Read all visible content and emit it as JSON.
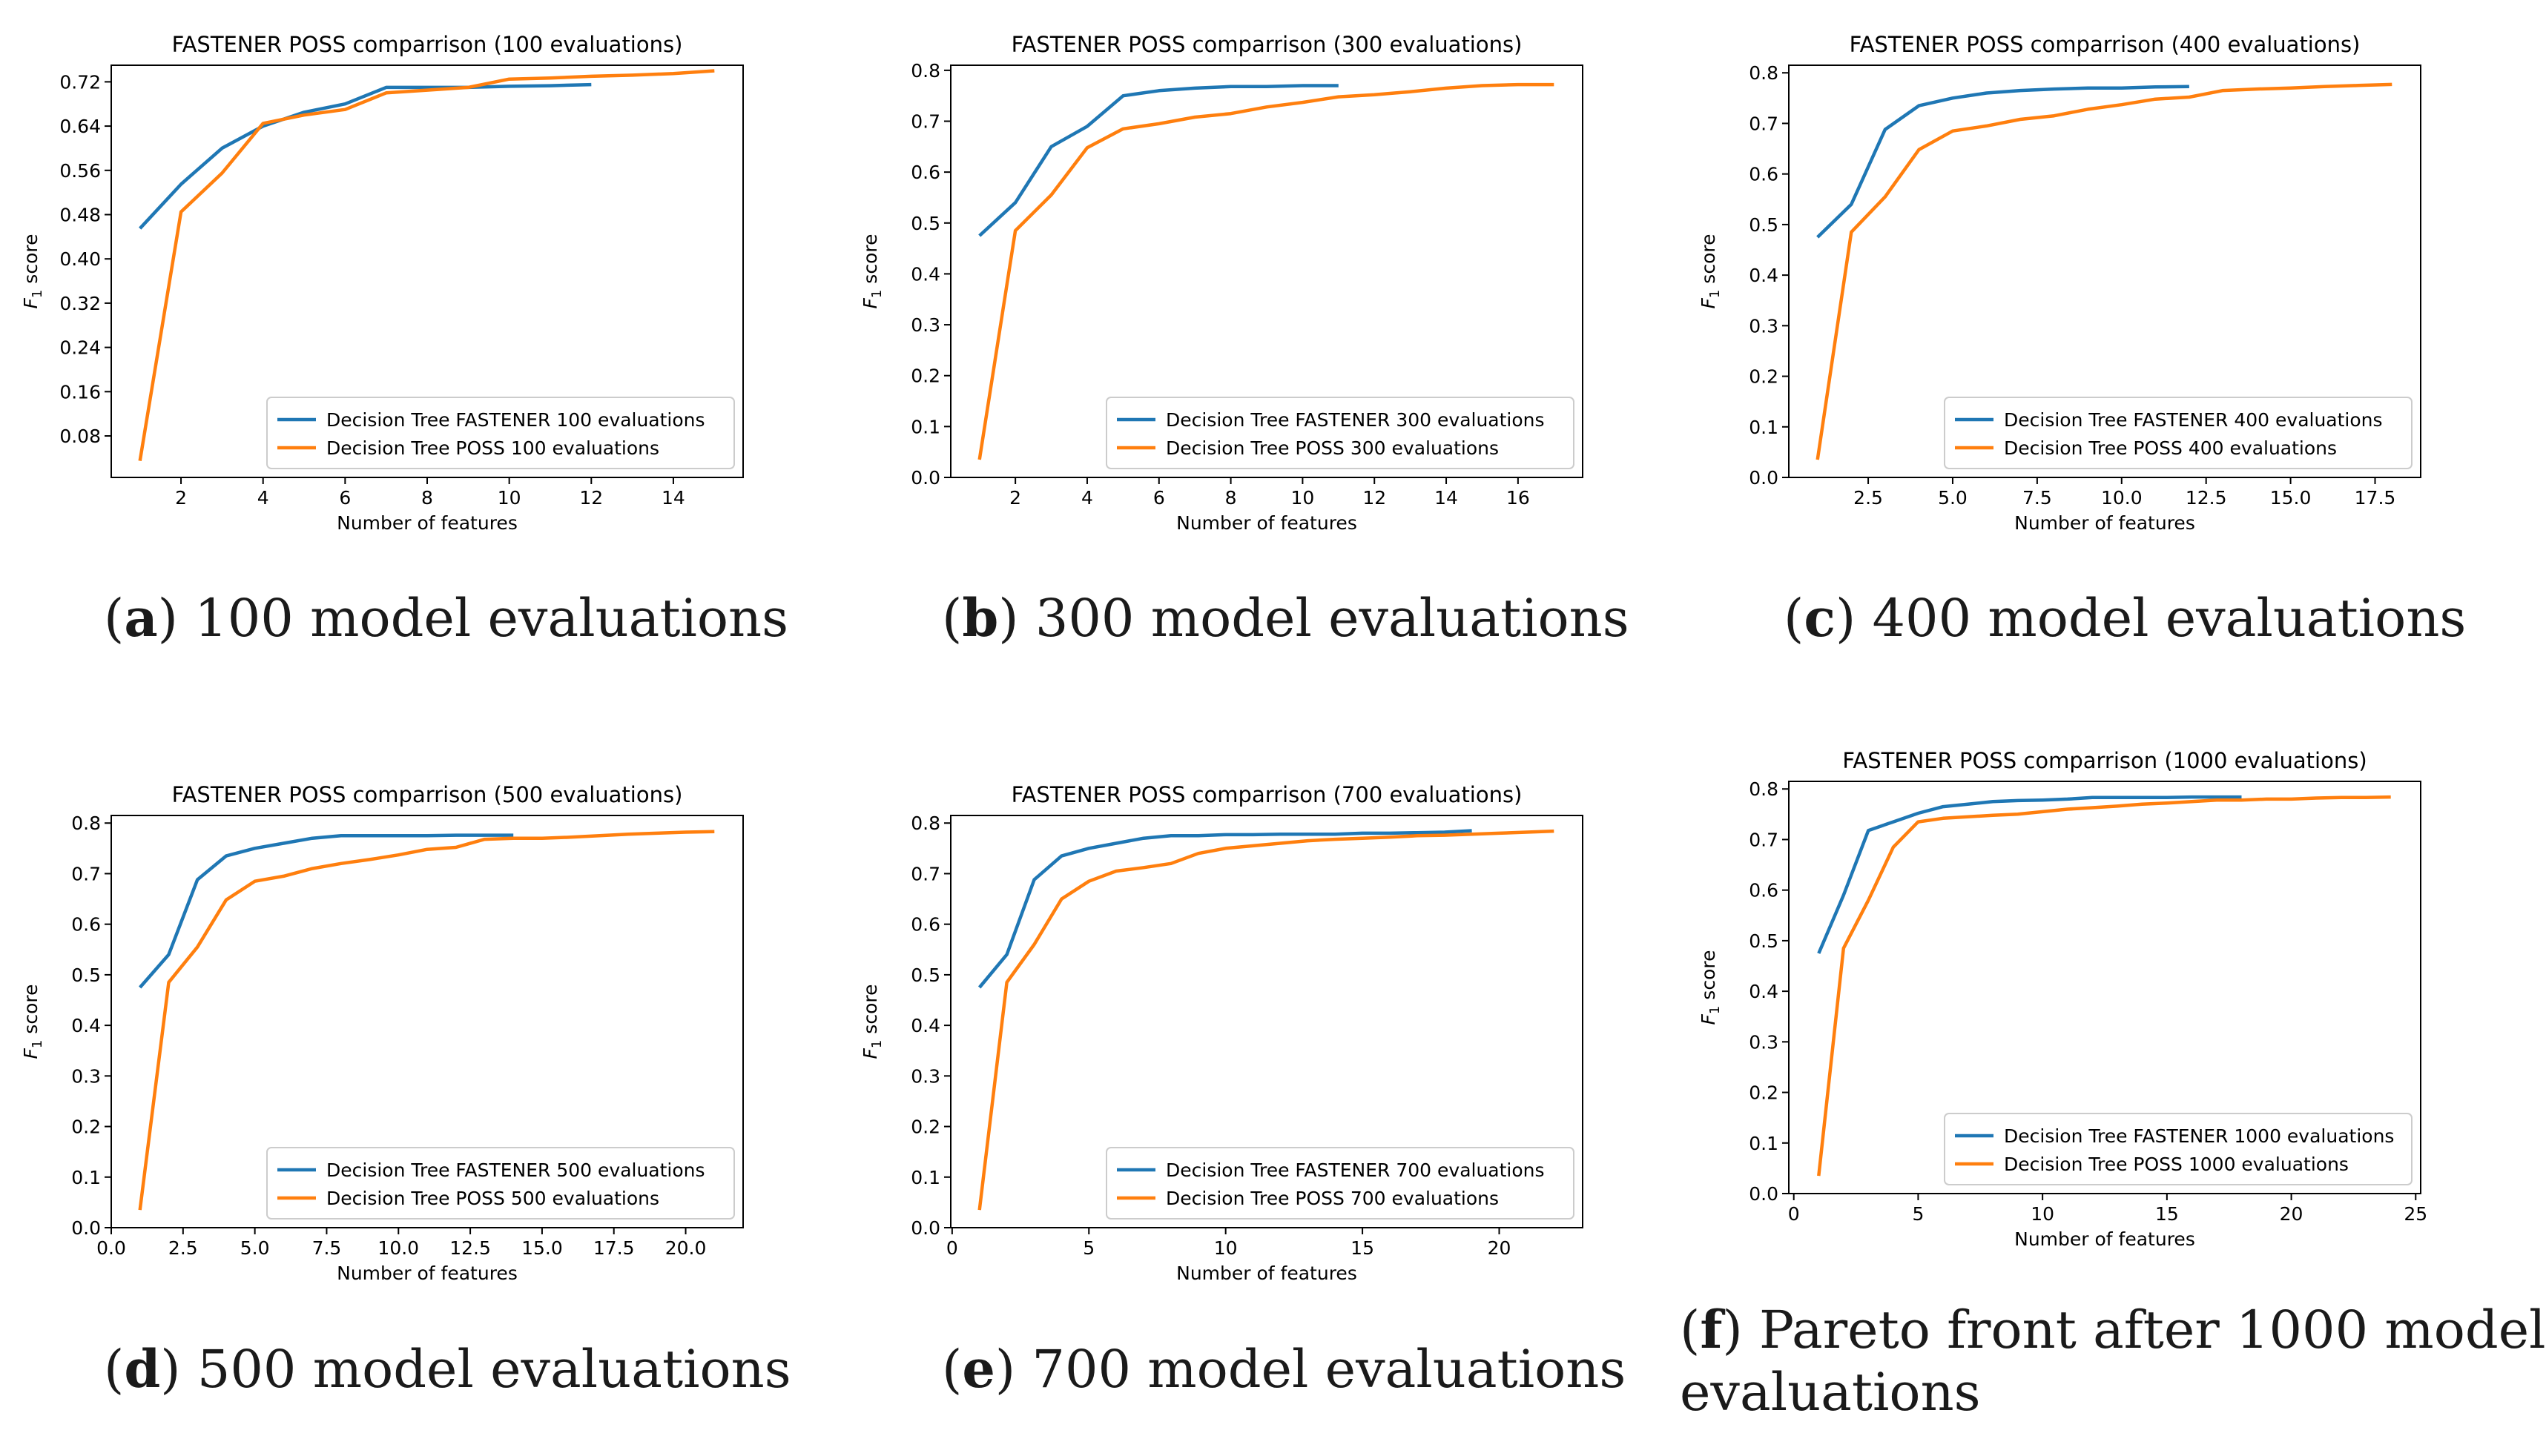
{
  "figure": {
    "f1_label_sub": "1",
    "f1_label_rest": " score"
  },
  "chart_data": [
    {
      "type": "line",
      "panel": "a",
      "title": "FASTENER POSS comparrison (100 evaluations)",
      "xlabel": "Number of features",
      "ylabel": "F1 score",
      "xlim": [
        0.3,
        15.7
      ],
      "ylim": [
        0.005,
        0.75
      ],
      "xticks": [
        2,
        4,
        6,
        8,
        10,
        12,
        14
      ],
      "xtick_labels": [
        "2",
        "4",
        "6",
        "8",
        "10",
        "12",
        "14"
      ],
      "yticks": [
        0.08,
        0.16,
        0.24,
        0.32,
        0.4,
        0.48,
        0.56,
        0.64,
        0.72
      ],
      "ytick_labels": [
        "0.08",
        "0.16",
        "0.24",
        "0.32",
        "0.40",
        "0.48",
        "0.56",
        "0.64",
        "0.72"
      ],
      "legend_position": "lower-right",
      "series": [
        {
          "name": "Decision Tree FASTENER 100 evaluations",
          "color": "#1f77b4",
          "x": [
            1,
            2,
            3,
            4,
            5,
            6,
            7,
            8,
            9,
            10,
            11,
            12
          ],
          "y": [
            0.455,
            0.535,
            0.6,
            0.64,
            0.665,
            0.68,
            0.71,
            0.71,
            0.71,
            0.712,
            0.713,
            0.715
          ]
        },
        {
          "name": "Decision Tree POSS 100 evaluations",
          "color": "#ff7f0e",
          "x": [
            1,
            2,
            3,
            4,
            5,
            6,
            7,
            8,
            9,
            10,
            11,
            12,
            13,
            14,
            15
          ],
          "y": [
            0.035,
            0.485,
            0.555,
            0.645,
            0.66,
            0.67,
            0.7,
            0.705,
            0.71,
            0.725,
            0.727,
            0.73,
            0.732,
            0.735,
            0.74
          ]
        }
      ]
    },
    {
      "type": "line",
      "panel": "b",
      "title": "FASTENER POSS comparrison (300 evaluations)",
      "xlabel": "Number of features",
      "ylabel": "F1 score",
      "xlim": [
        0.2,
        17.8
      ],
      "ylim": [
        0,
        0.81
      ],
      "xticks": [
        2,
        4,
        6,
        8,
        10,
        12,
        14,
        16
      ],
      "xtick_labels": [
        "2",
        "4",
        "6",
        "8",
        "10",
        "12",
        "14",
        "16"
      ],
      "yticks": [
        0.0,
        0.1,
        0.2,
        0.3,
        0.4,
        0.5,
        0.6,
        0.7,
        0.8
      ],
      "ytick_labels": [
        "0.0",
        "0.1",
        "0.2",
        "0.3",
        "0.4",
        "0.5",
        "0.6",
        "0.7",
        "0.8"
      ],
      "legend_position": "lower-right",
      "series": [
        {
          "name": "Decision Tree FASTENER 300 evaluations",
          "color": "#1f77b4",
          "x": [
            1,
            2,
            3,
            4,
            5,
            6,
            7,
            8,
            9,
            10,
            11
          ],
          "y": [
            0.475,
            0.54,
            0.65,
            0.69,
            0.75,
            0.76,
            0.765,
            0.768,
            0.768,
            0.77,
            0.77
          ]
        },
        {
          "name": "Decision Tree POSS 300 evaluations",
          "color": "#ff7f0e",
          "x": [
            1,
            2,
            3,
            4,
            5,
            6,
            7,
            8,
            9,
            10,
            11,
            12,
            13,
            14,
            15,
            16,
            17
          ],
          "y": [
            0.035,
            0.485,
            0.555,
            0.648,
            0.685,
            0.695,
            0.708,
            0.715,
            0.728,
            0.737,
            0.748,
            0.752,
            0.758,
            0.765,
            0.77,
            0.772,
            0.772
          ]
        }
      ]
    },
    {
      "type": "line",
      "panel": "c",
      "title": "FASTENER POSS comparrison (400 evaluations)",
      "xlabel": "Number of features",
      "ylabel": "F1 score",
      "xlim": [
        0.15,
        18.85
      ],
      "ylim": [
        0,
        0.815
      ],
      "xticks": [
        2.5,
        5.0,
        7.5,
        10.0,
        12.5,
        15.0,
        17.5
      ],
      "xtick_labels": [
        "2.5",
        "5.0",
        "7.5",
        "10.0",
        "12.5",
        "15.0",
        "17.5"
      ],
      "yticks": [
        0.0,
        0.1,
        0.2,
        0.3,
        0.4,
        0.5,
        0.6,
        0.7,
        0.8
      ],
      "ytick_labels": [
        "0.0",
        "0.1",
        "0.2",
        "0.3",
        "0.4",
        "0.5",
        "0.6",
        "0.7",
        "0.8"
      ],
      "legend_position": "lower-right",
      "series": [
        {
          "name": "Decision Tree FASTENER 400 evaluations",
          "color": "#1f77b4",
          "x": [
            1,
            2,
            3,
            4,
            5,
            6,
            7,
            8,
            9,
            10,
            11,
            12
          ],
          "y": [
            0.475,
            0.54,
            0.688,
            0.735,
            0.75,
            0.76,
            0.765,
            0.768,
            0.77,
            0.77,
            0.772,
            0.773
          ]
        },
        {
          "name": "Decision Tree POSS 400 evaluations",
          "color": "#ff7f0e",
          "x": [
            1,
            2,
            3,
            4,
            5,
            6,
            7,
            8,
            9,
            10,
            11,
            12,
            13,
            14,
            15,
            16,
            17,
            18
          ],
          "y": [
            0.035,
            0.485,
            0.555,
            0.648,
            0.685,
            0.695,
            0.708,
            0.715,
            0.728,
            0.737,
            0.748,
            0.752,
            0.765,
            0.768,
            0.77,
            0.773,
            0.775,
            0.777
          ]
        }
      ]
    },
    {
      "type": "line",
      "panel": "d",
      "title": "FASTENER POSS comparrison (500 evaluations)",
      "xlabel": "Number of features",
      "ylabel": "F1 score",
      "xlim": [
        0,
        22
      ],
      "ylim": [
        0,
        0.815
      ],
      "xticks": [
        0.0,
        2.5,
        5.0,
        7.5,
        10.0,
        12.5,
        15.0,
        17.5,
        20.0
      ],
      "xtick_labels": [
        "0.0",
        "2.5",
        "5.0",
        "7.5",
        "10.0",
        "12.5",
        "15.0",
        "17.5",
        "20.0"
      ],
      "yticks": [
        0.0,
        0.1,
        0.2,
        0.3,
        0.4,
        0.5,
        0.6,
        0.7,
        0.8
      ],
      "ytick_labels": [
        "0.0",
        "0.1",
        "0.2",
        "0.3",
        "0.4",
        "0.5",
        "0.6",
        "0.7",
        "0.8"
      ],
      "legend_position": "lower-right",
      "series": [
        {
          "name": "Decision Tree FASTENER 500 evaluations",
          "color": "#1f77b4",
          "x": [
            1,
            2,
            3,
            4,
            5,
            6,
            7,
            8,
            9,
            10,
            11,
            12,
            13,
            14
          ],
          "y": [
            0.475,
            0.54,
            0.688,
            0.735,
            0.75,
            0.76,
            0.77,
            0.775,
            0.775,
            0.775,
            0.775,
            0.776,
            0.776,
            0.776
          ]
        },
        {
          "name": "Decision Tree POSS 500 evaluations",
          "color": "#ff7f0e",
          "x": [
            1,
            2,
            3,
            4,
            5,
            6,
            7,
            8,
            9,
            10,
            11,
            12,
            13,
            14,
            15,
            16,
            17,
            18,
            19,
            20,
            21
          ],
          "y": [
            0.035,
            0.485,
            0.555,
            0.648,
            0.685,
            0.695,
            0.71,
            0.72,
            0.728,
            0.737,
            0.748,
            0.752,
            0.768,
            0.77,
            0.77,
            0.772,
            0.775,
            0.778,
            0.78,
            0.782,
            0.783
          ]
        }
      ]
    },
    {
      "type": "line",
      "panel": "e",
      "title": "FASTENER POSS comparrison (700 evaluations)",
      "xlabel": "Number of features",
      "ylabel": "F1 score",
      "xlim": [
        -0.05,
        23.05
      ],
      "ylim": [
        0,
        0.815
      ],
      "xticks": [
        0,
        5,
        10,
        15,
        20
      ],
      "xtick_labels": [
        "0",
        "5",
        "10",
        "15",
        "20"
      ],
      "yticks": [
        0.0,
        0.1,
        0.2,
        0.3,
        0.4,
        0.5,
        0.6,
        0.7,
        0.8
      ],
      "ytick_labels": [
        "0.0",
        "0.1",
        "0.2",
        "0.3",
        "0.4",
        "0.5",
        "0.6",
        "0.7",
        "0.8"
      ],
      "legend_position": "lower-right",
      "series": [
        {
          "name": "Decision Tree FASTENER 700 evaluations",
          "color": "#1f77b4",
          "x": [
            1,
            2,
            3,
            4,
            5,
            6,
            7,
            8,
            9,
            10,
            11,
            12,
            13,
            14,
            15,
            16,
            17,
            18,
            19
          ],
          "y": [
            0.475,
            0.54,
            0.688,
            0.735,
            0.75,
            0.76,
            0.77,
            0.775,
            0.775,
            0.777,
            0.777,
            0.778,
            0.778,
            0.778,
            0.78,
            0.78,
            0.781,
            0.782,
            0.785
          ]
        },
        {
          "name": "Decision Tree POSS 700 evaluations",
          "color": "#ff7f0e",
          "x": [
            1,
            2,
            3,
            4,
            5,
            6,
            7,
            8,
            9,
            10,
            11,
            12,
            13,
            14,
            15,
            16,
            17,
            18,
            19,
            20,
            21,
            22
          ],
          "y": [
            0.035,
            0.485,
            0.56,
            0.65,
            0.685,
            0.705,
            0.712,
            0.72,
            0.74,
            0.75,
            0.755,
            0.76,
            0.765,
            0.768,
            0.77,
            0.772,
            0.775,
            0.776,
            0.778,
            0.78,
            0.782,
            0.784
          ]
        }
      ]
    },
    {
      "type": "line",
      "panel": "f",
      "title": "FASTENER POSS comparrison (1000 evaluations)",
      "xlabel": "Number of features",
      "ylabel": "F1 score",
      "xlim": [
        -0.2,
        25.2
      ],
      "ylim": [
        0,
        0.815
      ],
      "xticks": [
        0,
        5,
        10,
        15,
        20,
        25
      ],
      "xtick_labels": [
        "0",
        "5",
        "10",
        "15",
        "20",
        "25"
      ],
      "yticks": [
        0.0,
        0.1,
        0.2,
        0.3,
        0.4,
        0.5,
        0.6,
        0.7,
        0.8
      ],
      "ytick_labels": [
        "0.0",
        "0.1",
        "0.2",
        "0.3",
        "0.4",
        "0.5",
        "0.6",
        "0.7",
        "0.8"
      ],
      "legend_position": "lower-right",
      "series": [
        {
          "name": "Decision Tree FASTENER 1000 evaluations",
          "color": "#1f77b4",
          "x": [
            1,
            2,
            3,
            4,
            5,
            6,
            7,
            8,
            9,
            10,
            11,
            12,
            13,
            14,
            15,
            16,
            17,
            18
          ],
          "y": [
            0.475,
            0.59,
            0.718,
            0.735,
            0.752,
            0.765,
            0.77,
            0.775,
            0.777,
            0.778,
            0.78,
            0.783,
            0.783,
            0.783,
            0.783,
            0.784,
            0.784,
            0.784
          ]
        },
        {
          "name": "Decision Tree POSS 1000 evaluations",
          "color": "#ff7f0e",
          "x": [
            1,
            2,
            3,
            4,
            5,
            6,
            7,
            8,
            9,
            10,
            11,
            12,
            13,
            14,
            15,
            16,
            17,
            18,
            19,
            20,
            21,
            22,
            23,
            24
          ],
          "y": [
            0.035,
            0.485,
            0.58,
            0.685,
            0.735,
            0.742,
            0.745,
            0.748,
            0.75,
            0.755,
            0.76,
            0.763,
            0.766,
            0.77,
            0.772,
            0.775,
            0.778,
            0.778,
            0.78,
            0.78,
            0.782,
            0.783,
            0.783,
            0.784
          ]
        }
      ]
    }
  ],
  "captions": [
    {
      "letter": "a",
      "text": "100 model evaluations"
    },
    {
      "letter": "b",
      "text": "300 model evaluations"
    },
    {
      "letter": "c",
      "text": "400 model evaluations"
    },
    {
      "letter": "d",
      "text": "500 model evaluations"
    },
    {
      "letter": "e",
      "text": "700 model evaluations"
    },
    {
      "letter": "f",
      "text": "Pareto front after 1000 model",
      "text2": "evaluations"
    }
  ]
}
